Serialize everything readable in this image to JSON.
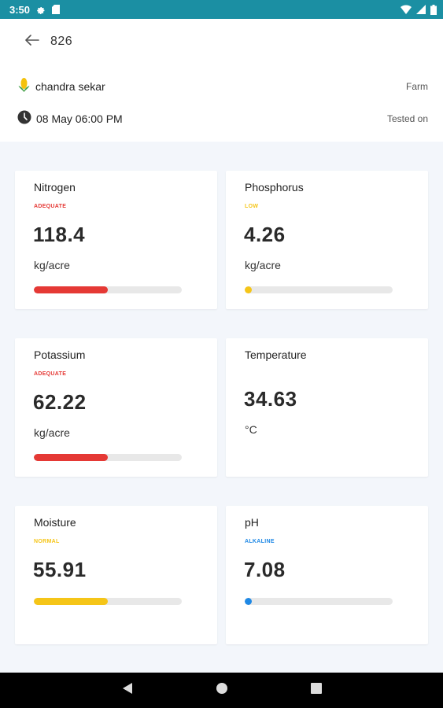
{
  "status_bar": {
    "time": "3:50"
  },
  "header": {
    "title": "826",
    "farmer_name": "chandra sekar",
    "farmer_label": "Farm",
    "tested_datetime": "08 May 06:00 PM",
    "tested_label": "Tested on"
  },
  "cards": [
    {
      "title": "Nitrogen",
      "status": "ADEQUATE",
      "status_color": "#e53935",
      "value": "118.4",
      "unit": "kg/acre",
      "bar_fraction": 0.5,
      "bar_color": "#e53935"
    },
    {
      "title": "Phosphorus",
      "status": "LOW",
      "status_color": "#f5c518",
      "value": "4.26",
      "unit": "kg/acre",
      "bar_fraction": 0.05,
      "bar_color": "#f5c518"
    },
    {
      "title": "Potassium",
      "status": "ADEQUATE",
      "status_color": "#e53935",
      "value": "62.22",
      "unit": "kg/acre",
      "bar_fraction": 0.5,
      "bar_color": "#e53935"
    },
    {
      "title": "Temperature",
      "status": "",
      "status_color": "#000000",
      "value": "34.63",
      "unit": "°C",
      "bar_fraction": null,
      "bar_color": ""
    },
    {
      "title": "Moisture",
      "status": "NORMAL",
      "status_color": "#f5c518",
      "value": "55.91",
      "unit": "",
      "bar_fraction": 0.5,
      "bar_color": "#f5c518"
    },
    {
      "title": "pH",
      "status": "ALKALINE",
      "status_color": "#1e88e5",
      "value": "7.08",
      "unit": "",
      "bar_fraction": 0.05,
      "bar_color": "#1e88e5"
    }
  ],
  "icons": {
    "back": "arrow-left-icon",
    "farmer": "corn-icon",
    "time": "clock-icon",
    "nav": [
      "back-triangle-icon",
      "home-circle-icon",
      "recents-square-icon"
    ]
  },
  "colors": {
    "status_bar": "#1b8fa3",
    "background": "#f3f6fb"
  }
}
